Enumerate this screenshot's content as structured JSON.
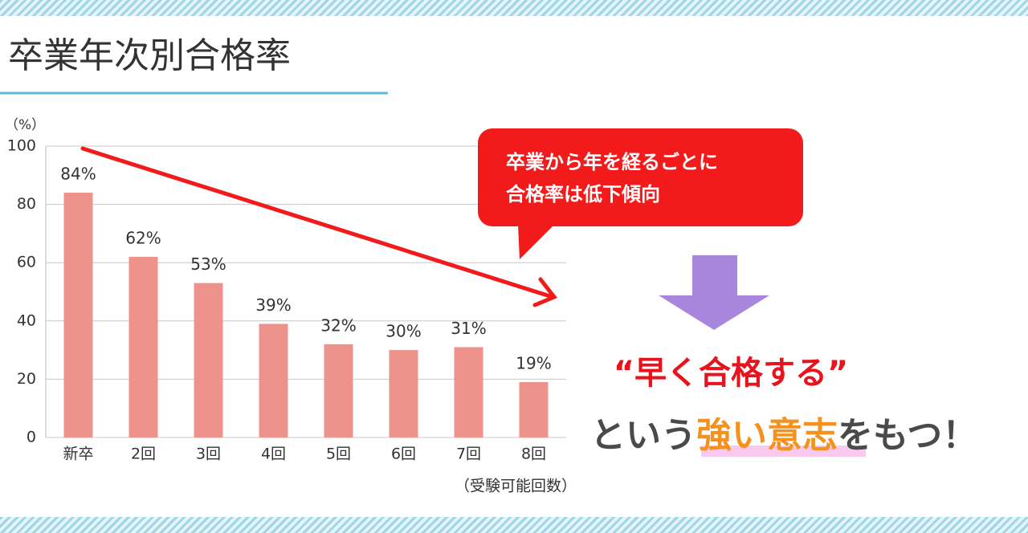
{
  "chart_data": {
    "type": "bar",
    "title": "卒業年次別合格率",
    "y_label": "（%）",
    "x_label": "（受験可能回数）",
    "categories": [
      "新卒",
      "2回",
      "3回",
      "4回",
      "5回",
      "6回",
      "7回",
      "8回"
    ],
    "values": [
      84,
      62,
      53,
      39,
      32,
      30,
      31,
      19
    ],
    "value_labels": [
      "84%",
      "62%",
      "53%",
      "39%",
      "32%",
      "30%",
      "31%",
      "19%"
    ],
    "color": "#ee928c",
    "ylim": [
      0,
      100
    ],
    "yticks": [
      0,
      20,
      40,
      60,
      80,
      100
    ],
    "grid": true
  },
  "callout": {
    "lines": [
      "卒業から年を経るごとに",
      "合格率は低下傾向"
    ]
  },
  "message": {
    "headline": "“早く合格する”",
    "before": "という",
    "emphasis": "強い意志",
    "after": "をもつ！"
  }
}
